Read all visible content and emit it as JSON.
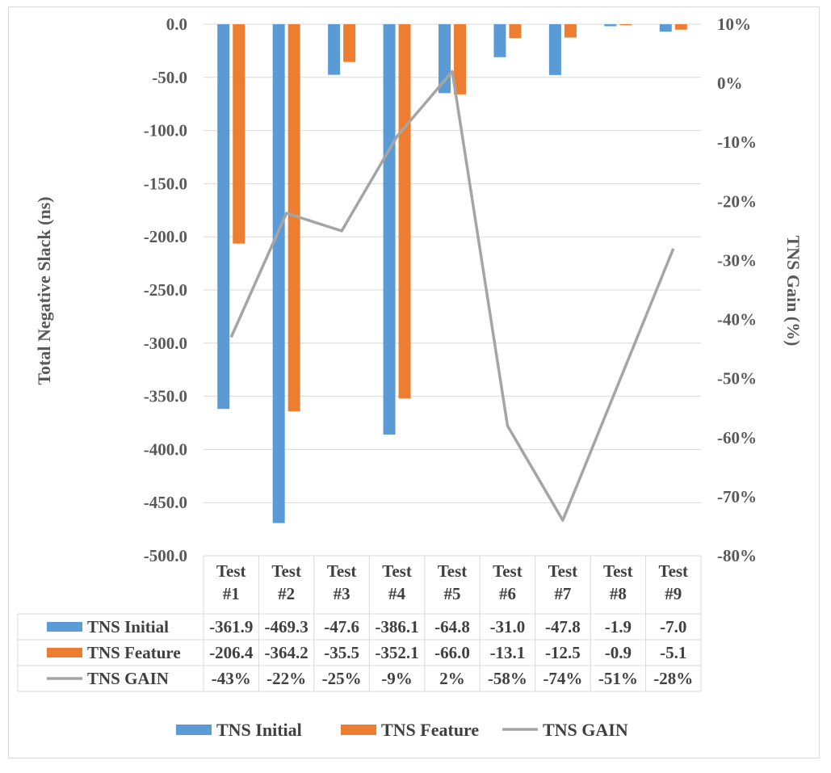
{
  "chart_data": {
    "type": "bar",
    "categories": [
      "Test #1",
      "Test #2",
      "Test #3",
      "Test #4",
      "Test #5",
      "Test #6",
      "Test #7",
      "Test #8",
      "Test #9"
    ],
    "category_lines": [
      [
        "Test",
        "#1"
      ],
      [
        "Test",
        "#2"
      ],
      [
        "Test",
        "#3"
      ],
      [
        "Test",
        "#4"
      ],
      [
        "Test",
        "#5"
      ],
      [
        "Test",
        "#6"
      ],
      [
        "Test",
        "#7"
      ],
      [
        "Test",
        "#8"
      ],
      [
        "Test",
        "#9"
      ]
    ],
    "series": [
      {
        "name": "TNS Initial",
        "kind": "bar",
        "axis": "left",
        "color": "#5b9bd5",
        "values": [
          -361.9,
          -469.3,
          -47.6,
          -386.1,
          -64.8,
          -31.0,
          -47.8,
          -1.9,
          -7.0
        ],
        "labels": [
          "-361.9",
          "-469.3",
          "-47.6",
          "-386.1",
          "-64.8",
          "-31.0",
          "-47.8",
          "-1.9",
          "-7.0"
        ]
      },
      {
        "name": "TNS Feature",
        "kind": "bar",
        "axis": "left",
        "color": "#ed7d31",
        "values": [
          -206.4,
          -364.2,
          -35.5,
          -352.1,
          -66.0,
          -13.1,
          -12.5,
          -0.9,
          -5.1
        ],
        "labels": [
          "-206.4",
          "-364.2",
          "-35.5",
          "-352.1",
          "-66.0",
          "-13.1",
          "-12.5",
          "-0.9",
          "-5.1"
        ]
      },
      {
        "name": "TNS GAIN",
        "kind": "line",
        "axis": "right",
        "color": "#a5a5a5",
        "values": [
          -43,
          -22,
          -25,
          -9,
          2,
          -58,
          -74,
          -51,
          -28
        ],
        "labels": [
          "-43%",
          "-22%",
          "-25%",
          "-9%",
          "2%",
          "-58%",
          "-74%",
          "-51%",
          "-28%"
        ]
      }
    ],
    "ylabel": "Total Negative Slack (ns)",
    "ylim": [
      -500,
      0
    ],
    "yticks": [
      "0.0",
      "-50.0",
      "-100.0",
      "-150.0",
      "-200.0",
      "-250.0",
      "-300.0",
      "-350.0",
      "-400.0",
      "-450.0",
      "-500.0"
    ],
    "y2label": "TNS Gain (%)",
    "y2lim": [
      -80,
      10
    ],
    "y2ticks": [
      "10%",
      "0%",
      "-10%",
      "-20%",
      "-30%",
      "-40%",
      "-50%",
      "-60%",
      "-70%",
      "-80%"
    ],
    "grid": true,
    "data_table": true,
    "legend_position": "bottom"
  }
}
